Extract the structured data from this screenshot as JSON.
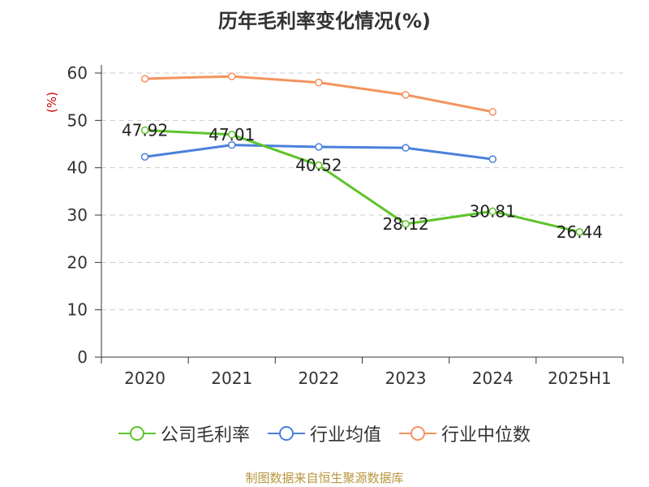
{
  "chart_data": {
    "type": "line",
    "title": "历年毛利率变化情况(%)",
    "ylabel": "(%)",
    "xlabel": "",
    "categories": [
      "2020",
      "2021",
      "2022",
      "2023",
      "2024",
      "2025H1"
    ],
    "ylim": [
      0,
      60
    ],
    "yticks": [
      0,
      10,
      20,
      30,
      40,
      50,
      60
    ],
    "grid": true,
    "legend_position": "bottom",
    "series": [
      {
        "name": "公司毛利率",
        "color": "#5dc42c",
        "values": [
          47.92,
          47.01,
          40.52,
          28.12,
          30.81,
          26.44
        ],
        "show_labels": true
      },
      {
        "name": "行业均值",
        "color": "#4a80dc",
        "values": [
          42.3,
          44.8,
          44.4,
          44.2,
          41.8,
          null
        ],
        "show_labels": false
      },
      {
        "name": "行业中位数",
        "color": "#f4935e",
        "values": [
          58.8,
          59.3,
          58.0,
          55.4,
          51.8,
          null
        ],
        "show_labels": false
      }
    ]
  },
  "source": "制图数据来自恒生聚源数据库"
}
